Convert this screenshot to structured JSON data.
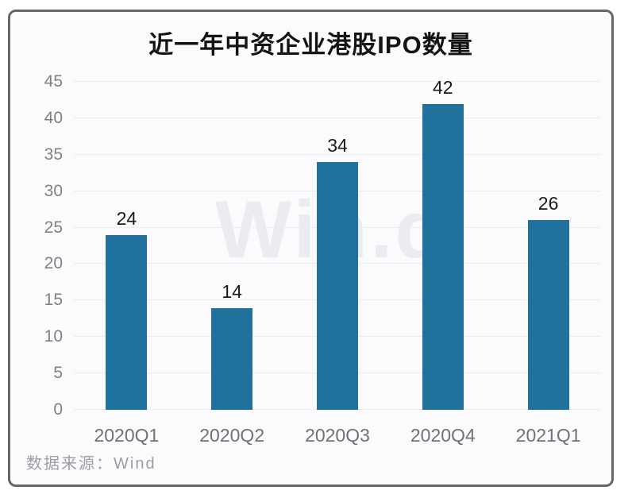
{
  "page": {
    "watermark": "Win.d",
    "footer": "数据来源：Wind"
  },
  "chart_data": {
    "type": "bar",
    "title": "近一年中资企业港股IPO数量",
    "categories": [
      "2020Q1",
      "2020Q2",
      "2020Q3",
      "2020Q4",
      "2021Q1"
    ],
    "values": [
      24,
      14,
      34,
      42,
      26
    ],
    "xlabel": "",
    "ylabel": "",
    "ylim": [
      0,
      45
    ],
    "yticks": [
      0,
      5,
      10,
      15,
      20,
      25,
      30,
      35,
      40,
      45
    ],
    "grid": true,
    "legend": false,
    "bar_color": "#20719e",
    "gridline_color": "#ebebf0",
    "source_text": "数据来源：Wind",
    "watermark_text": "Win.d"
  }
}
